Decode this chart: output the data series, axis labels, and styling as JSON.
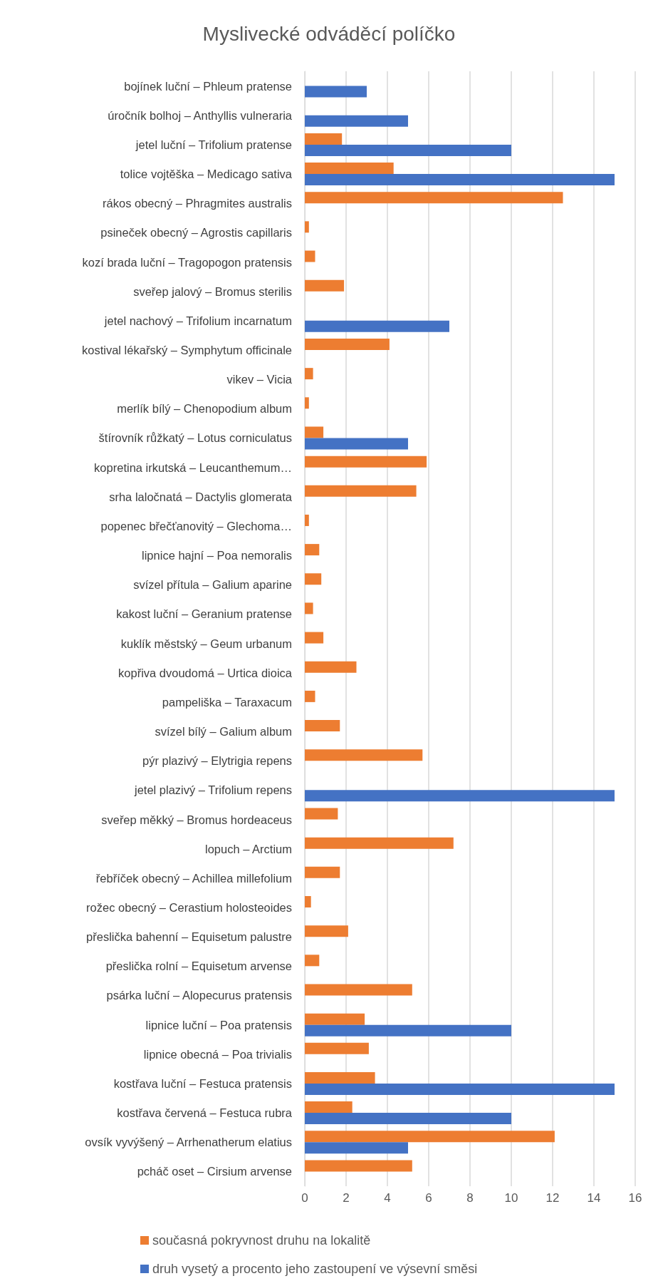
{
  "chart_data": {
    "type": "bar",
    "orientation": "horizontal",
    "title": "Myslivecké odváděcí políčko",
    "categories": [
      "bojínek luční – Phleum pratense",
      "úročník bolhoj – Anthyllis vulneraria",
      "jetel luční – Trifolium pratense",
      "tolice vojtěška – Medicago sativa",
      "rákos obecný – Phragmites australis",
      "psineček obecný – Agrostis capillaris",
      "kozí brada luční – Tragopogon pratensis",
      "sveřep jalový – Bromus sterilis",
      "jetel nachový – Trifolium incarnatum",
      "kostival lékařský – Symphytum officinale",
      "vikev – Vicia",
      "merlík bílý – Chenopodium album",
      "štírovník růžkatý – Lotus corniculatus",
      "kopretina irkutská – Leucanthemum…",
      "srha laločnatá – Dactylis glomerata",
      "popenec břečťanovitý – Glechoma…",
      "lipnice hajní – Poa nemoralis",
      "svízel přítula – Galium aparine",
      "kakost luční – Geranium pratense",
      "kuklík městský – Geum urbanum",
      "kopřiva dvoudomá – Urtica dioica",
      "pampeliška – Taraxacum",
      "svízel bílý – Galium album",
      "pýr plazivý – Elytrigia repens",
      "jetel plazivý – Trifolium repens",
      "sveřep měkký – Bromus hordeaceus",
      "lopuch – Arctium",
      "řebříček obecný – Achillea millefolium",
      "rožec obecný – Cerastium holosteoides",
      "přeslička bahenní – Equisetum palustre",
      "přeslička rolní – Equisetum arvense",
      "psárka luční – Alopecurus pratensis",
      "lipnice luční – Poa pratensis",
      "lipnice obecná – Poa trivialis",
      "kostřava luční – Festuca pratensis",
      "kostřava červená – Festuca rubra",
      "ovsík vyvýšený – Arrhenatherum elatius",
      "pcháč oset – Cirsium arvense"
    ],
    "series": [
      {
        "name": "současná pokryvnost druhu na lokalitě",
        "color": "#ed7d31",
        "values": [
          null,
          null,
          1.8,
          4.3,
          12.5,
          0.2,
          0.5,
          1.9,
          null,
          4.1,
          0.4,
          0.2,
          0.9,
          5.9,
          5.4,
          0.2,
          0.7,
          0.8,
          0.4,
          0.9,
          2.5,
          0.5,
          1.7,
          5.7,
          null,
          1.6,
          7.2,
          1.7,
          0.3,
          2.1,
          0.7,
          5.2,
          2.9,
          3.1,
          3.4,
          2.3,
          12.1,
          5.2
        ]
      },
      {
        "name": "druh vysetý a procento jeho zastoupení ve výsevní směsi",
        "color": "#4472c4",
        "values": [
          3,
          5,
          10,
          15,
          null,
          null,
          null,
          null,
          7,
          null,
          null,
          null,
          5,
          null,
          null,
          null,
          null,
          null,
          null,
          null,
          null,
          null,
          null,
          null,
          15,
          null,
          null,
          null,
          null,
          null,
          null,
          null,
          10,
          null,
          15,
          10,
          5,
          null
        ]
      }
    ],
    "xlim": [
      0,
      16
    ],
    "xticks": [
      0,
      2,
      4,
      6,
      8,
      10,
      12,
      14,
      16
    ],
    "grid": "x",
    "legend": "bottom"
  }
}
